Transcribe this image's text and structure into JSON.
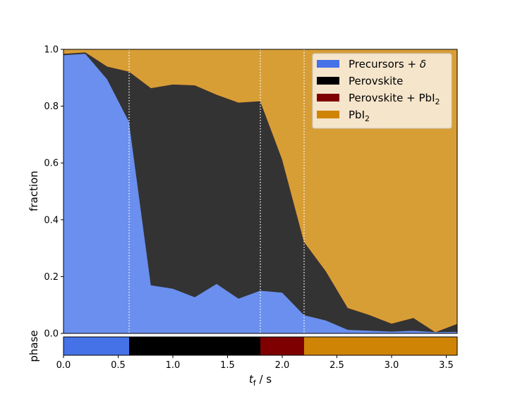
{
  "chart_data": {
    "type": "area",
    "stacked": true,
    "x": [
      0.0,
      0.2,
      0.4,
      0.6,
      0.8,
      1.0,
      1.2,
      1.4,
      1.6,
      1.8,
      2.0,
      2.2,
      2.4,
      2.6,
      2.8,
      3.0,
      3.2,
      3.4,
      3.6
    ],
    "series": [
      {
        "name": "Precursors + δ",
        "color": "#6a8fee",
        "values": [
          0.98,
          0.985,
          0.895,
          0.745,
          0.17,
          0.158,
          0.128,
          0.175,
          0.123,
          0.151,
          0.144,
          0.065,
          0.046,
          0.013,
          0.01,
          0.007,
          0.01,
          0.005,
          0.006
        ]
      },
      {
        "name": "Perovskite",
        "color": "#333333",
        "values": [
          0.005,
          0.005,
          0.045,
          0.177,
          0.694,
          0.719,
          0.746,
          0.666,
          0.69,
          0.667,
          0.469,
          0.258,
          0.173,
          0.077,
          0.055,
          0.028,
          0.045,
          0.0,
          0.028
        ]
      },
      {
        "name": "Perovskite + PbI2",
        "color": "#7f0000",
        "values": [
          0,
          0,
          0,
          0,
          0,
          0,
          0,
          0,
          0,
          0,
          0,
          0,
          0,
          0,
          0,
          0,
          0,
          0,
          0
        ]
      },
      {
        "name": "PbI2",
        "color": "#d89e36",
        "values": [
          0.015,
          0.01,
          0.06,
          0.078,
          0.136,
          0.123,
          0.126,
          0.159,
          0.187,
          0.182,
          0.387,
          0.677,
          0.781,
          0.91,
          0.935,
          0.965,
          0.945,
          0.995,
          0.966
        ]
      }
    ],
    "xlabel": "t",
    "xlabel_sub": "f",
    "xlabel_unit": " / s",
    "ylabel": "fraction",
    "phase_label": "phase",
    "xlim": [
      0,
      3.6
    ],
    "ylim": [
      0,
      1.0
    ],
    "xticks": [
      "0.0",
      "0.5",
      "1.0",
      "1.5",
      "2.0",
      "2.5",
      "3.0",
      "3.5"
    ],
    "yticks": [
      "0.0",
      "0.2",
      "0.4",
      "0.6",
      "0.8",
      "1.0"
    ],
    "boundaries": [
      0.6,
      1.8,
      2.2
    ],
    "phase_bar": [
      {
        "from": 0.0,
        "to": 0.6,
        "color": "#4672e8"
      },
      {
        "from": 0.6,
        "to": 1.8,
        "color": "#000000"
      },
      {
        "from": 1.8,
        "to": 2.2,
        "color": "#7f0000"
      },
      {
        "from": 2.2,
        "to": 3.6,
        "color": "#d08406"
      }
    ],
    "legend": {
      "placement": "top-right",
      "entries": [
        {
          "main": "Precursors + ",
          "greek": "δ",
          "sub": "",
          "color": "#4672e8"
        },
        {
          "main": "Perovskite",
          "greek": "",
          "sub": "",
          "color": "#000000"
        },
        {
          "main": "Perovskite + PbI",
          "greek": "",
          "sub": "2",
          "color": "#7f0000"
        },
        {
          "main": "PbI",
          "greek": "",
          "sub": "2",
          "color": "#d08406"
        }
      ]
    },
    "grid": false
  }
}
